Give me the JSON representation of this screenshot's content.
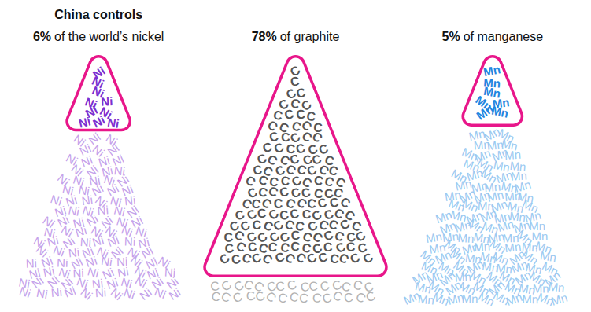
{
  "chart_data": {
    "type": "pictogram",
    "title": "China controls",
    "categories": [
      "of the world’s nickel",
      "of graphite",
      "of manganese"
    ],
    "values": [
      6,
      78,
      5
    ],
    "value_labels": [
      "6%",
      "78%",
      "5%"
    ],
    "data_labels": true,
    "symbols": [
      "Ni",
      "C",
      "Mn"
    ],
    "colors": [
      "#7b2fd0",
      "#555555",
      "#1f86e0"
    ]
  }
}
